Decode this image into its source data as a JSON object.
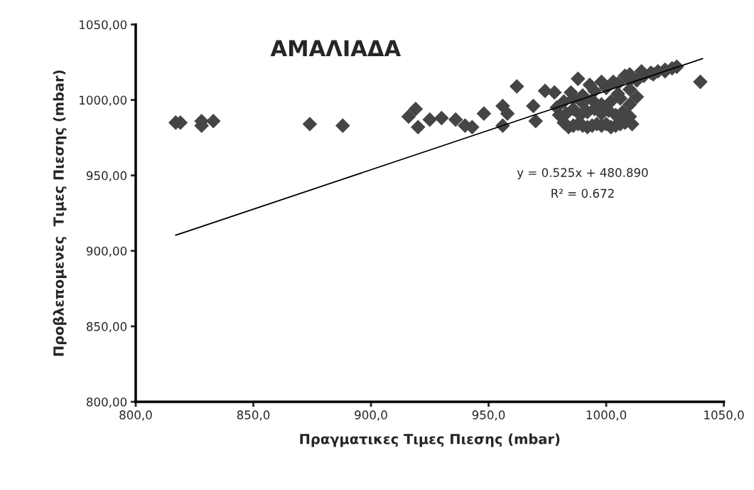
{
  "chart_data": {
    "type": "scatter",
    "title": "ΑΜΑΛΙΑΔΑ",
    "xlabel": "Πραγματικες Τιμες Πιεσης (mbar)",
    "ylabel": "Προβλεπομενες  Τιμες Πιεσης (mbar)",
    "annotations": [
      "y = 0.525x + 480.890",
      "R² = 0.672"
    ],
    "xlim": [
      800,
      1050
    ],
    "ylim": [
      800,
      1050
    ],
    "xticks": [
      {
        "value": 800,
        "label": "800,0"
      },
      {
        "value": 850,
        "label": "850,0"
      },
      {
        "value": 900,
        "label": "900,0"
      },
      {
        "value": 950,
        "label": "950,0"
      },
      {
        "value": 1000,
        "label": "1000,0"
      },
      {
        "value": 1050,
        "label": "1050,0"
      }
    ],
    "yticks": [
      {
        "value": 800,
        "label": "800,00"
      },
      {
        "value": 850,
        "label": "850,00"
      },
      {
        "value": 900,
        "label": "900,00"
      },
      {
        "value": 950,
        "label": "950,00"
      },
      {
        "value": 1000,
        "label": "1000,00"
      },
      {
        "value": 1050,
        "label": "1050,00"
      }
    ],
    "grid": false,
    "legend": false,
    "series": [
      {
        "marker": "diamond",
        "color": "#454545",
        "x": [
          817,
          819,
          828,
          828,
          833,
          874,
          888,
          916,
          919,
          920,
          925,
          930,
          936,
          940,
          943,
          948,
          956,
          958,
          956,
          962,
          969,
          970,
          974,
          978,
          979,
          980,
          982,
          984,
          986,
          988,
          990,
          992,
          994,
          996,
          998,
          1000,
          1002,
          1004,
          1006,
          1008,
          1011,
          983,
          986,
          989,
          992,
          995,
          998,
          1001,
          1004,
          1007,
          1010,
          982,
          986,
          990,
          994,
          998,
          1002,
          1006,
          1010,
          985,
          990,
          995,
          1000,
          1005,
          1010,
          1013,
          988,
          993,
          998,
          1003,
          1008,
          1013,
          1016,
          1019,
          1022,
          1025,
          1028,
          1030,
          1005,
          1010,
          1020,
          1025,
          1010,
          1015,
          1040
        ],
        "values": [
          985,
          985,
          986,
          983,
          986,
          984,
          983,
          989,
          994,
          982,
          987,
          988,
          987,
          983,
          982,
          991,
          996,
          991,
          983,
          1009,
          996,
          986,
          1006,
          1005,
          995,
          990,
          985,
          982,
          983,
          984,
          983,
          982,
          983,
          984,
          983,
          984,
          982,
          983,
          984,
          985,
          984,
          991,
          994,
          990,
          992,
          994,
          991,
          993,
          990,
          992,
          989,
          999,
          1001,
          998,
          1000,
          997,
          999,
          1001,
          997,
          1005,
          1003,
          1006,
          1008,
          1004,
          1007,
          1002,
          1014,
          1010,
          1012,
          1012,
          1016,
          1013,
          1016,
          1018,
          1019,
          1020,
          1021,
          1022,
          1011,
          1013,
          1017,
          1019,
          1017,
          1019,
          1012
        ]
      },
      {
        "type": "line",
        "color": "#000000",
        "marker": "none",
        "line_style": "solid",
        "x": [
          817,
          1041
        ],
        "values": [
          910.4,
          1027.4
        ]
      }
    ]
  }
}
